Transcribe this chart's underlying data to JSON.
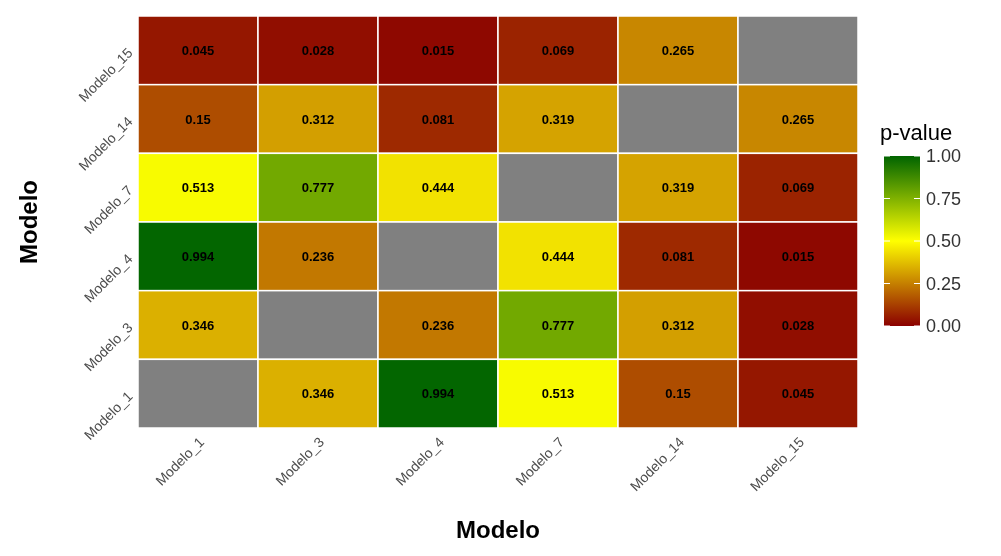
{
  "chart_data": {
    "type": "heatmap",
    "xlabel": "Modelo",
    "ylabel": "Modelo",
    "legend_title": "p-value",
    "categories": [
      "Modelo_1",
      "Modelo_3",
      "Modelo_4",
      "Modelo_7",
      "Modelo_14",
      "Modelo_15"
    ],
    "y_categories": [
      "Modelo_15",
      "Modelo_14",
      "Modelo_7",
      "Modelo_4",
      "Modelo_3",
      "Modelo_1"
    ],
    "cells": [
      [
        0.045,
        0.028,
        0.015,
        0.069,
        0.265,
        null
      ],
      [
        0.15,
        0.312,
        0.081,
        0.319,
        null,
        0.265
      ],
      [
        0.513,
        0.777,
        0.444,
        null,
        0.319,
        0.069
      ],
      [
        0.994,
        0.236,
        null,
        0.444,
        0.081,
        0.015
      ],
      [
        0.346,
        null,
        0.236,
        0.777,
        0.312,
        0.028
      ],
      [
        null,
        0.346,
        0.994,
        0.513,
        0.15,
        0.045
      ]
    ],
    "colors": [
      "#8b0000",
      "#ffff00",
      "#006400"
    ],
    "clim": [
      0,
      1
    ],
    "cticks": [
      {
        "value": 0,
        "label": "0.00"
      },
      {
        "value": 0.25,
        "label": "0.25"
      },
      {
        "value": 0.5,
        "label": "0.50"
      },
      {
        "value": 0.75,
        "label": "0.75"
      },
      {
        "value": 1,
        "label": "1.00"
      }
    ],
    "data_labels": true
  }
}
